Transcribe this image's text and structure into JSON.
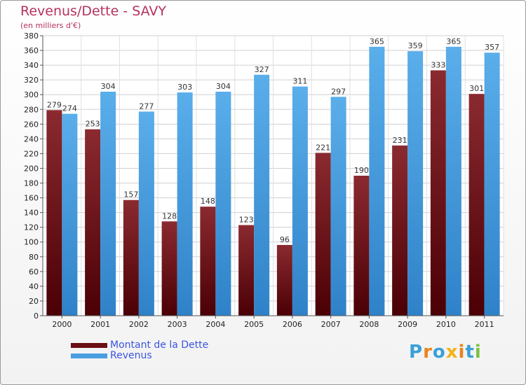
{
  "header": {
    "title": "Revenus/Dette - SAVY",
    "subtitle": "(en milliers d'€)"
  },
  "legend": {
    "items": [
      {
        "label": "Montant de la Dette",
        "color": "#6b0f14"
      },
      {
        "label": "Revenus",
        "color": "#4a9ee0"
      }
    ]
  },
  "logo": {
    "text": "Proxiti",
    "letter_colors": [
      "#3aa0d8",
      "#e8841c",
      "#3aa0d8",
      "#f2b21a",
      "#e8841c",
      "#3aa0d8",
      "#7cc242"
    ]
  },
  "chart_data": {
    "type": "bar",
    "categories": [
      "2000",
      "2001",
      "2002",
      "2003",
      "2004",
      "2005",
      "2006",
      "2007",
      "2008",
      "2009",
      "2010",
      "2011"
    ],
    "series": [
      {
        "name": "Montant de la Dette",
        "color": "#6b0f14",
        "values": [
          279,
          253,
          157,
          128,
          148,
          123,
          96,
          221,
          190,
          231,
          333,
          301
        ]
      },
      {
        "name": "Revenus",
        "color": "#4a9ee0",
        "values": [
          274,
          304,
          277,
          303,
          304,
          327,
          311,
          297,
          365,
          359,
          365,
          357
        ]
      }
    ],
    "ylim": [
      0,
      380
    ],
    "yticks": [
      0,
      20,
      40,
      60,
      80,
      100,
      120,
      140,
      160,
      180,
      200,
      220,
      240,
      260,
      280,
      300,
      320,
      340,
      360,
      380
    ],
    "grid": true,
    "legend_position": "bottom-left"
  }
}
